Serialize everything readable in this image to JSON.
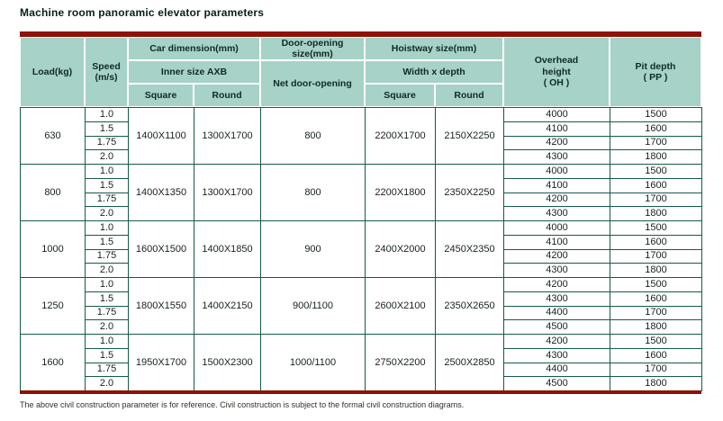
{
  "title": "Machine room panoramic elevator parameters",
  "footnote": "The above civil construction parameter is for reference. Civil construction is subject to the formal civil construction diagrams.",
  "colors": {
    "accent_red": "#8e1206",
    "header_bg": "#a7d2c7",
    "grid_dark": "#155a4b",
    "grid_light": "#5aa493"
  },
  "header": {
    "load": "Load(kg)",
    "speed": [
      "Speed",
      "(m/s)"
    ],
    "car_dimension": "Car dimension(mm)",
    "inner_size": "Inner size AXB",
    "door_opening_size": "Door-opening size(mm)",
    "net_door_opening": "Net door-opening",
    "hoistway_size": "Hoistway size(mm)",
    "width_x_depth": "Width x depth",
    "square": "Square",
    "round": "Round",
    "overhead": [
      "Overhead",
      "height",
      "( OH )"
    ],
    "pit": [
      "Pit depth",
      "( PP )"
    ]
  },
  "groups": [
    {
      "load": "630",
      "speeds": [
        "1.0",
        "1.5",
        "1.75",
        "2.0"
      ],
      "car_square": "1400X1100",
      "car_round": "1300X1700",
      "net_door": "800",
      "hoistway_square": "2200X1700",
      "hoistway_round": "2150X2250",
      "overhead": [
        "4000",
        "4100",
        "4200",
        "4300"
      ],
      "pit": [
        "1500",
        "1600",
        "1700",
        "1800"
      ]
    },
    {
      "load": "800",
      "speeds": [
        "1.0",
        "1.5",
        "1.75",
        "2.0"
      ],
      "car_square": "1400X1350",
      "car_round": "1300X1700",
      "net_door": "800",
      "hoistway_square": "2200X1800",
      "hoistway_round": "2350X2250",
      "overhead": [
        "4000",
        "4100",
        "4200",
        "4300"
      ],
      "pit": [
        "1500",
        "1600",
        "1700",
        "1800"
      ]
    },
    {
      "load": "1000",
      "speeds": [
        "1.0",
        "1.5",
        "1.75",
        "2.0"
      ],
      "car_square": "1600X1500",
      "car_round": "1400X1850",
      "net_door": "900",
      "hoistway_square": "2400X2000",
      "hoistway_round": "2450X2350",
      "overhead": [
        "4000",
        "4100",
        "4200",
        "4300"
      ],
      "pit": [
        "1500",
        "1600",
        "1700",
        "1800"
      ]
    },
    {
      "load": "1250",
      "speeds": [
        "1.0",
        "1.5",
        "1.75",
        "2.0"
      ],
      "car_square": "1800X1550",
      "car_round": "1400X2150",
      "net_door": "900/1100",
      "hoistway_square": "2600X2100",
      "hoistway_round": "2350X2650",
      "overhead": [
        "4200",
        "4300",
        "4400",
        "4500"
      ],
      "pit": [
        "1500",
        "1600",
        "1700",
        "1800"
      ]
    },
    {
      "load": "1600",
      "speeds": [
        "1.0",
        "1.5",
        "1.75",
        "2.0"
      ],
      "car_square": "1950X1700",
      "car_round": "1500X2300",
      "net_door": "1000/1100",
      "hoistway_square": "2750X2200",
      "hoistway_round": "2500X2850",
      "overhead": [
        "4200",
        "4300",
        "4400",
        "4500"
      ],
      "pit": [
        "1500",
        "1600",
        "1700",
        "1800"
      ]
    }
  ]
}
